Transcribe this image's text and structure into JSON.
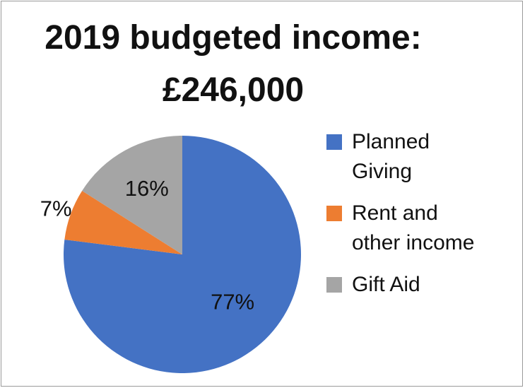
{
  "title": {
    "line1": "2019 budgeted income:",
    "line2": "£246,000"
  },
  "chart_data": {
    "type": "pie",
    "title": "2019 budgeted income: £246,000",
    "legend_position": "right",
    "slices": [
      {
        "label": "Planned\nGiving",
        "value": 77,
        "display": "77%",
        "color": "#4472C4"
      },
      {
        "label": "Rent and\nother income",
        "value": 7,
        "display": "7%",
        "color": "#ED7D31"
      },
      {
        "label": "Gift Aid",
        "value": 16,
        "display": "16%",
        "color": "#A5A5A5"
      }
    ]
  }
}
